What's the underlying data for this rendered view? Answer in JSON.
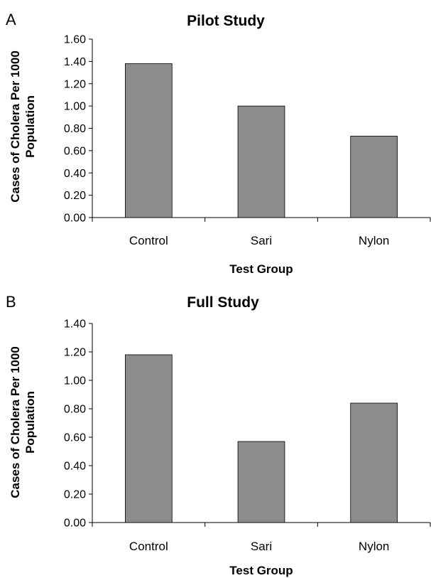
{
  "chart_data": [
    {
      "type": "bar",
      "panel": "A",
      "title": "Pilot Study",
      "xlabel": "Test Group",
      "ylabel_line1": "Cases of Cholera Per 1000",
      "ylabel_line2": "Population",
      "categories": [
        "Control",
        "Sari",
        "Nylon"
      ],
      "values": [
        1.38,
        1.0,
        0.73
      ],
      "yticks": [
        "0.00",
        "0.20",
        "0.40",
        "0.60",
        "0.80",
        "1.00",
        "1.20",
        "1.40",
        "1.60"
      ],
      "ylim": [
        0,
        1.6
      ],
      "bar_color": "#8c8c8c",
      "grid": false
    },
    {
      "type": "bar",
      "panel": "B",
      "title": "Full Study",
      "xlabel": "Test Group",
      "ylabel_line1": "Cases of Cholera Per 1000",
      "ylabel_line2": "Population",
      "categories": [
        "Control",
        "Sari",
        "Nylon"
      ],
      "values": [
        1.18,
        0.57,
        0.84
      ],
      "yticks": [
        "0.00",
        "0.20",
        "0.40",
        "0.60",
        "0.80",
        "1.00",
        "1.20",
        "1.40"
      ],
      "ylim": [
        0,
        1.4
      ],
      "bar_color": "#8c8c8c",
      "grid": false
    }
  ]
}
